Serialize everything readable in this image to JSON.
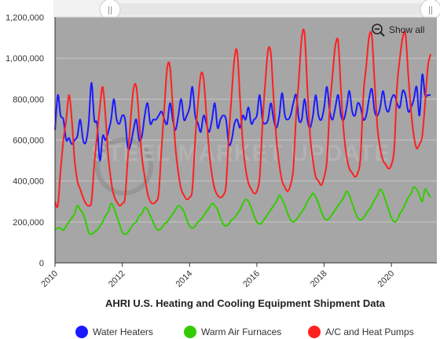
{
  "chart_data": {
    "type": "line",
    "title": "AHRI U.S. Heating and Cooling Equipment Shipment Data",
    "xlabel": "",
    "ylabel": "",
    "xlim": [
      2010.0,
      2021.35
    ],
    "ylim": [
      0,
      1200000
    ],
    "x_ticks": [
      2010,
      2012,
      2014,
      2016,
      2018,
      2020
    ],
    "y_ticks": [
      0,
      200000,
      400000,
      600000,
      800000,
      1000000,
      1200000
    ],
    "y_tick_labels": [
      "0",
      "200,000",
      "400,000",
      "600,000",
      "800,000",
      "1,000,000",
      "1,200,000"
    ],
    "grid": true,
    "legend": "bottom",
    "x_start": "2010-01",
    "x_step": "1 month",
    "series": [
      {
        "name": "Water Heaters",
        "color": "#1a1aff",
        "values": [
          650000,
          820000,
          720000,
          700000,
          600000,
          610000,
          580000,
          600000,
          620000,
          700000,
          600000,
          590000,
          680000,
          880000,
          700000,
          680000,
          500000,
          620000,
          600000,
          640000,
          700000,
          800000,
          700000,
          680000,
          720000,
          700000,
          560000,
          580000,
          650000,
          700000,
          600000,
          620000,
          720000,
          780000,
          680000,
          700000,
          700000,
          720000,
          740000,
          700000,
          680000,
          780000,
          700000,
          650000,
          720000,
          800000,
          700000,
          720000,
          760000,
          860000,
          720000,
          680000,
          640000,
          720000,
          680000,
          640000,
          700000,
          780000,
          660000,
          700000,
          720000,
          700000,
          580000,
          600000,
          680000,
          700000,
          660000,
          720000,
          700000,
          760000,
          680000,
          700000,
          720000,
          820000,
          700000,
          680000,
          700000,
          780000,
          700000,
          660000,
          720000,
          830000,
          720000,
          700000,
          720000,
          780000,
          820000,
          700000,
          700000,
          800000,
          700000,
          660000,
          720000,
          820000,
          720000,
          700000,
          760000,
          860000,
          740000,
          700000,
          760000,
          820000,
          720000,
          700000,
          760000,
          840000,
          740000,
          720000,
          780000,
          760000,
          700000,
          720000,
          800000,
          850000,
          740000,
          720000,
          760000,
          840000,
          760000,
          740000,
          800000,
          820000,
          780000,
          760000,
          840000,
          820000,
          740000,
          760000,
          800000,
          860000,
          720000,
          920000,
          820000,
          820000,
          820000
        ]
      },
      {
        "name": "Warm Air Furnaces",
        "color": "#33cc00",
        "values": [
          160000,
          170000,
          170000,
          160000,
          180000,
          200000,
          220000,
          240000,
          280000,
          260000,
          240000,
          200000,
          150000,
          140000,
          150000,
          160000,
          180000,
          200000,
          230000,
          250000,
          290000,
          270000,
          230000,
          190000,
          150000,
          140000,
          150000,
          170000,
          190000,
          200000,
          230000,
          240000,
          270000,
          260000,
          230000,
          200000,
          170000,
          160000,
          170000,
          190000,
          200000,
          220000,
          240000,
          260000,
          280000,
          270000,
          250000,
          210000,
          180000,
          170000,
          180000,
          200000,
          210000,
          230000,
          250000,
          270000,
          290000,
          280000,
          260000,
          220000,
          190000,
          180000,
          190000,
          210000,
          220000,
          240000,
          260000,
          290000,
          310000,
          300000,
          270000,
          230000,
          200000,
          190000,
          200000,
          220000,
          240000,
          260000,
          280000,
          300000,
          330000,
          310000,
          280000,
          240000,
          210000,
          200000,
          210000,
          230000,
          250000,
          270000,
          300000,
          320000,
          340000,
          320000,
          290000,
          250000,
          220000,
          210000,
          220000,
          240000,
          260000,
          280000,
          300000,
          320000,
          350000,
          330000,
          290000,
          250000,
          220000,
          210000,
          220000,
          240000,
          260000,
          280000,
          310000,
          330000,
          360000,
          340000,
          300000,
          260000,
          220000,
          200000,
          210000,
          240000,
          260000,
          290000,
          320000,
          340000,
          370000,
          360000,
          330000,
          300000,
          360000,
          340000,
          320000
        ]
      },
      {
        "name": "A/C and Heat Pumps",
        "color": "#ff2020",
        "values": [
          300000,
          280000,
          450000,
          600000,
          700000,
          820000,
          700000,
          500000,
          400000,
          360000,
          320000,
          290000,
          280000,
          300000,
          480000,
          620000,
          760000,
          860000,
          720000,
          520000,
          400000,
          330000,
          300000,
          280000,
          290000,
          320000,
          520000,
          700000,
          850000,
          860000,
          700000,
          520000,
          420000,
          340000,
          300000,
          290000,
          300000,
          340000,
          560000,
          760000,
          950000,
          960000,
          760000,
          560000,
          440000,
          360000,
          330000,
          310000,
          320000,
          360000,
          600000,
          780000,
          920000,
          900000,
          720000,
          540000,
          430000,
          360000,
          330000,
          320000,
          330000,
          380000,
          620000,
          820000,
          1000000,
          1030000,
          800000,
          580000,
          460000,
          390000,
          360000,
          340000,
          350000,
          420000,
          680000,
          880000,
          1040000,
          1020000,
          800000,
          600000,
          480000,
          400000,
          370000,
          350000,
          380000,
          460000,
          720000,
          900000,
          1100000,
          1120000,
          860000,
          620000,
          500000,
          420000,
          400000,
          380000,
          420000,
          500000,
          760000,
          920000,
          1060000,
          1080000,
          840000,
          640000,
          520000,
          460000,
          440000,
          420000,
          440000,
          520000,
          820000,
          960000,
          1100000,
          1110000,
          880000,
          660000,
          560000,
          500000,
          480000,
          460000,
          480000,
          560000,
          860000,
          1000000,
          1100000,
          1120000,
          920000,
          740000,
          620000,
          560000,
          580000,
          620000,
          780000,
          960000,
          1020000
        ]
      }
    ]
  },
  "navigator": {
    "left_handle_glyph": "||",
    "right_handle_glyph": "||"
  },
  "show_all": {
    "label": "Show all",
    "icon": "zoom-out-icon"
  },
  "watermark": {
    "text": "STEEL MARKET UPDATE",
    "color": "#bdbdbd"
  },
  "colors": {
    "plot_background": "#a6a6a6",
    "grid": "#c6c6c6",
    "axis": "#333333"
  }
}
